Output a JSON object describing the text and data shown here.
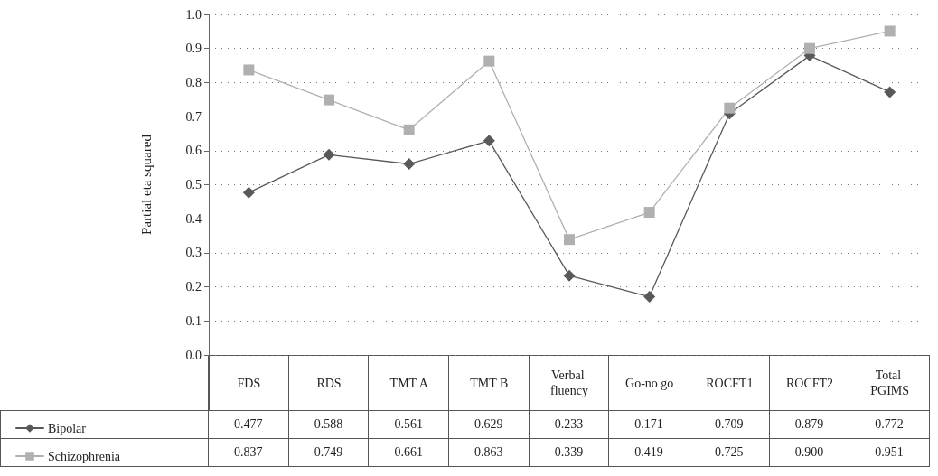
{
  "chart_data": {
    "type": "line",
    "ylabel": "Partial eta squared",
    "categories": [
      "FDS",
      "RDS",
      "TMT A",
      "TMT B",
      "Verbal fluency",
      "Go-no go",
      "ROCFT1",
      "ROCFT2",
      "Total PGIMS"
    ],
    "series": [
      {
        "name": "Bipolar",
        "color": "#595959",
        "marker": "diamond",
        "values": [
          0.477,
          0.588,
          0.561,
          0.629,
          0.233,
          0.171,
          0.709,
          0.879,
          0.772
        ],
        "value_labels": [
          "0.477",
          "0.588",
          "0.561",
          "0.629",
          "0.233",
          "0.171",
          "0.709",
          "0.879",
          "0.772"
        ]
      },
      {
        "name": "Schizophrenia",
        "color": "#b0b0b0",
        "marker": "square",
        "values": [
          0.837,
          0.749,
          0.661,
          0.863,
          0.339,
          0.419,
          0.725,
          0.9,
          0.951
        ],
        "value_labels": [
          "0.837",
          "0.749",
          "0.661",
          "0.863",
          "0.339",
          "0.419",
          "0.725",
          "0.900",
          "0.951"
        ]
      }
    ],
    "ylim": [
      0,
      1
    ],
    "yticks": [
      {
        "value": 0,
        "label": "0.0"
      },
      0.1,
      0.2,
      0.3,
      0.4,
      0.5,
      0.6,
      0.7,
      0.8,
      0.9,
      {
        "value": 1,
        "label": "1.0"
      }
    ],
    "grid": "y",
    "legend": "bottom left",
    "line_style": "solid"
  }
}
